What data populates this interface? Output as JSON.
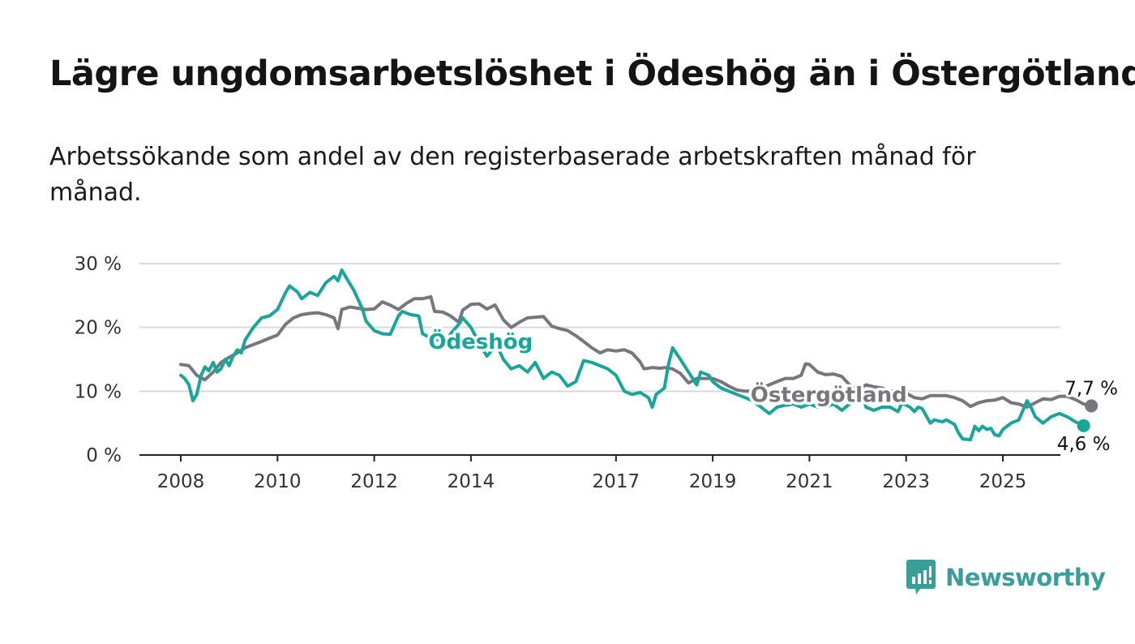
{
  "title": "Lägre ungdomsarbetslöshet i Ödeshög än i Östergötland",
  "subtitle": "Arbetssökande som andel av den registerbaserade arbetskraften månad för månad.",
  "brand": {
    "name": "Newsworthy",
    "color": "#3a9e98",
    "icon": "bar-chart-speech-bubble-icon"
  },
  "chart_data": {
    "type": "line",
    "title": "Lägre ungdomsarbetslöshet i Ödeshög än i Östergötland",
    "subtitle": "Arbetssökande som andel av den registerbaserade arbetskraften månad för månad.",
    "xlabel": "",
    "ylabel": "",
    "x_ticks": [
      "2008",
      "2010",
      "2012",
      "2014",
      "2017",
      "2019",
      "2021",
      "2023",
      "2025"
    ],
    "x_tick_values": [
      2008,
      2010,
      2012,
      2014,
      2017,
      2019,
      2021,
      2023,
      2025
    ],
    "xlim": [
      2007.3,
      2026.2
    ],
    "y_ticks": [
      "0 %",
      "10 %",
      "20 %",
      "30 %"
    ],
    "y_tick_values": [
      0,
      10,
      20,
      30
    ],
    "ylim": [
      0,
      30
    ],
    "grid": true,
    "series": [
      {
        "name": "Östergötland",
        "color": "#78767d",
        "end_label": "7,7 %",
        "points": [
          [
            2008.0,
            14.2
          ],
          [
            2008.17,
            14.0
          ],
          [
            2008.33,
            12.5
          ],
          [
            2008.5,
            11.8
          ],
          [
            2008.67,
            13.0
          ],
          [
            2008.83,
            14.5
          ],
          [
            2009.0,
            15.3
          ],
          [
            2009.17,
            16.0
          ],
          [
            2009.33,
            16.8
          ],
          [
            2009.5,
            17.3
          ],
          [
            2009.67,
            17.8
          ],
          [
            2009.83,
            18.3
          ],
          [
            2010.0,
            18.8
          ],
          [
            2010.17,
            20.5
          ],
          [
            2010.33,
            21.5
          ],
          [
            2010.5,
            22.0
          ],
          [
            2010.67,
            22.2
          ],
          [
            2010.83,
            22.3
          ],
          [
            2011.0,
            22.0
          ],
          [
            2011.17,
            21.5
          ],
          [
            2011.25,
            19.8
          ],
          [
            2011.33,
            22.8
          ],
          [
            2011.5,
            23.2
          ],
          [
            2011.67,
            23.0
          ],
          [
            2011.83,
            22.8
          ],
          [
            2012.0,
            22.9
          ],
          [
            2012.17,
            24.0
          ],
          [
            2012.33,
            23.5
          ],
          [
            2012.5,
            22.8
          ],
          [
            2012.67,
            23.8
          ],
          [
            2012.83,
            24.5
          ],
          [
            2013.0,
            24.5
          ],
          [
            2013.17,
            24.8
          ],
          [
            2013.25,
            22.5
          ],
          [
            2013.42,
            22.4
          ],
          [
            2013.58,
            21.8
          ],
          [
            2013.75,
            20.8
          ],
          [
            2013.83,
            22.7
          ],
          [
            2014.0,
            23.6
          ],
          [
            2014.17,
            23.7
          ],
          [
            2014.33,
            22.9
          ],
          [
            2014.5,
            23.5
          ],
          [
            2014.67,
            21.2
          ],
          [
            2014.83,
            20.0
          ],
          [
            2015.0,
            20.8
          ],
          [
            2015.17,
            21.5
          ],
          [
            2015.33,
            21.6
          ],
          [
            2015.5,
            21.7
          ],
          [
            2015.67,
            20.2
          ],
          [
            2015.83,
            19.8
          ],
          [
            2016.0,
            19.5
          ],
          [
            2016.17,
            18.7
          ],
          [
            2016.33,
            17.8
          ],
          [
            2016.5,
            16.8
          ],
          [
            2016.67,
            16.0
          ],
          [
            2016.83,
            16.5
          ],
          [
            2017.0,
            16.3
          ],
          [
            2017.17,
            16.5
          ],
          [
            2017.33,
            16.0
          ],
          [
            2017.5,
            14.6
          ],
          [
            2017.58,
            13.5
          ],
          [
            2017.75,
            13.7
          ],
          [
            2017.92,
            13.6
          ],
          [
            2018.0,
            13.7
          ],
          [
            2018.17,
            13.5
          ],
          [
            2018.33,
            12.8
          ],
          [
            2018.5,
            11.3
          ],
          [
            2018.67,
            12.0
          ],
          [
            2018.83,
            12.0
          ],
          [
            2019.0,
            12.0
          ],
          [
            2019.17,
            11.5
          ],
          [
            2019.33,
            10.8
          ],
          [
            2019.5,
            10.2
          ],
          [
            2019.67,
            10.0
          ],
          [
            2019.83,
            10.0
          ],
          [
            2020.0,
            10.5
          ],
          [
            2020.17,
            11.0
          ],
          [
            2020.33,
            11.5
          ],
          [
            2020.5,
            12.0
          ],
          [
            2020.67,
            12.0
          ],
          [
            2020.83,
            12.5
          ],
          [
            2020.92,
            14.3
          ],
          [
            2021.0,
            14.2
          ],
          [
            2021.17,
            13.0
          ],
          [
            2021.33,
            12.6
          ],
          [
            2021.5,
            12.7
          ],
          [
            2021.67,
            12.3
          ],
          [
            2021.83,
            11.0
          ],
          [
            2022.0,
            10.2
          ],
          [
            2022.17,
            11.0
          ],
          [
            2022.33,
            10.7
          ],
          [
            2022.5,
            10.5
          ],
          [
            2022.67,
            10.0
          ],
          [
            2022.83,
            10.2
          ],
          [
            2023.0,
            9.7
          ],
          [
            2023.17,
            9.0
          ],
          [
            2023.33,
            8.8
          ],
          [
            2023.5,
            9.3
          ],
          [
            2023.67,
            9.3
          ],
          [
            2023.83,
            9.3
          ],
          [
            2024.0,
            9.0
          ],
          [
            2024.17,
            8.5
          ],
          [
            2024.33,
            7.6
          ],
          [
            2024.5,
            8.2
          ],
          [
            2024.67,
            8.5
          ],
          [
            2024.83,
            8.6
          ],
          [
            2025.0,
            9.0
          ],
          [
            2025.17,
            8.2
          ],
          [
            2025.33,
            8.0
          ],
          [
            2025.5,
            7.5
          ],
          [
            2025.67,
            8.2
          ],
          [
            2025.83,
            8.8
          ],
          [
            2026.0,
            8.7
          ],
          [
            2026.17,
            9.2
          ],
          [
            2026.33,
            9.2
          ],
          [
            2026.5,
            8.7
          ],
          [
            2026.67,
            8.0
          ],
          [
            2026.83,
            7.7
          ]
        ]
      },
      {
        "name": "Ödeshög",
        "color": "#1aa59b",
        "end_label": "4,6 %",
        "points": [
          [
            2008.0,
            12.5
          ],
          [
            2008.08,
            12.0
          ],
          [
            2008.17,
            11.0
          ],
          [
            2008.25,
            8.5
          ],
          [
            2008.33,
            9.5
          ],
          [
            2008.42,
            12.5
          ],
          [
            2008.5,
            13.8
          ],
          [
            2008.58,
            13.2
          ],
          [
            2008.67,
            14.5
          ],
          [
            2008.75,
            13.0
          ],
          [
            2008.83,
            13.5
          ],
          [
            2008.92,
            15.0
          ],
          [
            2009.0,
            14.0
          ],
          [
            2009.08,
            15.5
          ],
          [
            2009.17,
            16.5
          ],
          [
            2009.25,
            16.0
          ],
          [
            2009.33,
            18.0
          ],
          [
            2009.5,
            20.0
          ],
          [
            2009.67,
            21.5
          ],
          [
            2009.83,
            21.8
          ],
          [
            2010.0,
            22.8
          ],
          [
            2010.17,
            25.5
          ],
          [
            2010.25,
            26.5
          ],
          [
            2010.42,
            25.5
          ],
          [
            2010.5,
            24.5
          ],
          [
            2010.67,
            25.5
          ],
          [
            2010.83,
            25.0
          ],
          [
            2011.0,
            27.0
          ],
          [
            2011.17,
            28.0
          ],
          [
            2011.25,
            27.3
          ],
          [
            2011.33,
            29.0
          ],
          [
            2011.42,
            27.8
          ],
          [
            2011.58,
            25.8
          ],
          [
            2011.75,
            23.0
          ],
          [
            2011.83,
            21.0
          ],
          [
            2012.0,
            19.5
          ],
          [
            2012.17,
            19.0
          ],
          [
            2012.33,
            18.9
          ],
          [
            2012.5,
            21.8
          ],
          [
            2012.58,
            22.5
          ],
          [
            2012.75,
            22.0
          ],
          [
            2012.92,
            21.8
          ],
          [
            2013.0,
            19.0
          ],
          [
            2013.17,
            18.3
          ],
          [
            2013.33,
            18.0
          ],
          [
            2013.5,
            17.5
          ],
          [
            2013.58,
            19.0
          ],
          [
            2013.75,
            20.5
          ],
          [
            2013.83,
            21.5
          ],
          [
            2014.0,
            20.0
          ],
          [
            2014.17,
            17.5
          ],
          [
            2014.33,
            15.5
          ],
          [
            2014.5,
            17.0
          ],
          [
            2014.58,
            16.5
          ],
          [
            2014.67,
            15.0
          ],
          [
            2014.83,
            13.5
          ],
          [
            2015.0,
            14.0
          ],
          [
            2015.17,
            13.0
          ],
          [
            2015.33,
            14.5
          ],
          [
            2015.5,
            12.0
          ],
          [
            2015.67,
            13.0
          ],
          [
            2015.83,
            12.5
          ],
          [
            2016.0,
            10.8
          ],
          [
            2016.17,
            11.5
          ],
          [
            2016.33,
            14.8
          ],
          [
            2016.5,
            14.5
          ],
          [
            2016.67,
            14.0
          ],
          [
            2016.83,
            13.5
          ],
          [
            2017.0,
            12.5
          ],
          [
            2017.17,
            10.0
          ],
          [
            2017.33,
            9.5
          ],
          [
            2017.5,
            9.8
          ],
          [
            2017.67,
            9.0
          ],
          [
            2017.75,
            7.5
          ],
          [
            2017.83,
            9.5
          ],
          [
            2018.0,
            10.5
          ],
          [
            2018.08,
            14.0
          ],
          [
            2018.17,
            16.8
          ],
          [
            2018.33,
            15.0
          ],
          [
            2018.5,
            13.0
          ],
          [
            2018.67,
            11.0
          ],
          [
            2018.75,
            13.0
          ],
          [
            2018.92,
            12.5
          ],
          [
            2019.0,
            11.5
          ],
          [
            2019.17,
            10.5
          ],
          [
            2019.33,
            10.0
          ],
          [
            2019.5,
            9.5
          ],
          [
            2019.67,
            9.0
          ],
          [
            2019.83,
            8.5
          ],
          [
            2020.0,
            7.5
          ],
          [
            2020.17,
            6.5
          ],
          [
            2020.33,
            7.5
          ],
          [
            2020.5,
            7.8
          ],
          [
            2020.67,
            8.0
          ],
          [
            2020.83,
            7.5
          ],
          [
            2021.0,
            8.0
          ],
          [
            2021.17,
            7.5
          ],
          [
            2021.33,
            7.5
          ],
          [
            2021.5,
            8.0
          ],
          [
            2021.67,
            7.0
          ],
          [
            2021.83,
            8.0
          ],
          [
            2022.0,
            9.0
          ],
          [
            2022.08,
            10.5
          ],
          [
            2022.17,
            7.5
          ],
          [
            2022.33,
            7.0
          ],
          [
            2022.5,
            7.5
          ],
          [
            2022.67,
            7.5
          ],
          [
            2022.83,
            6.8
          ],
          [
            2022.92,
            8.2
          ],
          [
            2023.0,
            7.8
          ],
          [
            2023.08,
            7.5
          ],
          [
            2023.17,
            6.8
          ],
          [
            2023.25,
            7.5
          ],
          [
            2023.33,
            7.3
          ],
          [
            2023.5,
            5.0
          ],
          [
            2023.58,
            5.5
          ],
          [
            2023.75,
            5.2
          ],
          [
            2023.83,
            5.5
          ],
          [
            2024.0,
            4.8
          ],
          [
            2024.08,
            3.5
          ],
          [
            2024.17,
            2.5
          ],
          [
            2024.33,
            2.4
          ],
          [
            2024.42,
            4.5
          ],
          [
            2024.5,
            3.8
          ],
          [
            2024.58,
            4.5
          ],
          [
            2024.67,
            4.0
          ],
          [
            2024.75,
            4.2
          ],
          [
            2024.83,
            3.2
          ],
          [
            2024.92,
            3.0
          ],
          [
            2025.0,
            4.0
          ],
          [
            2025.17,
            5.0
          ],
          [
            2025.33,
            5.5
          ],
          [
            2025.5,
            8.5
          ],
          [
            2025.58,
            7.5
          ],
          [
            2025.67,
            6.0
          ],
          [
            2025.83,
            5.0
          ],
          [
            2026.0,
            6.0
          ],
          [
            2026.17,
            6.5
          ],
          [
            2026.33,
            6.0
          ],
          [
            2026.5,
            5.2
          ],
          [
            2026.67,
            4.6
          ]
        ]
      }
    ],
    "series_labels": [
      {
        "series": "Ödeshög",
        "x": 2014.2,
        "y": 17.8
      },
      {
        "series": "Östergötland",
        "x": 2021.4,
        "y": 9.5
      }
    ]
  }
}
